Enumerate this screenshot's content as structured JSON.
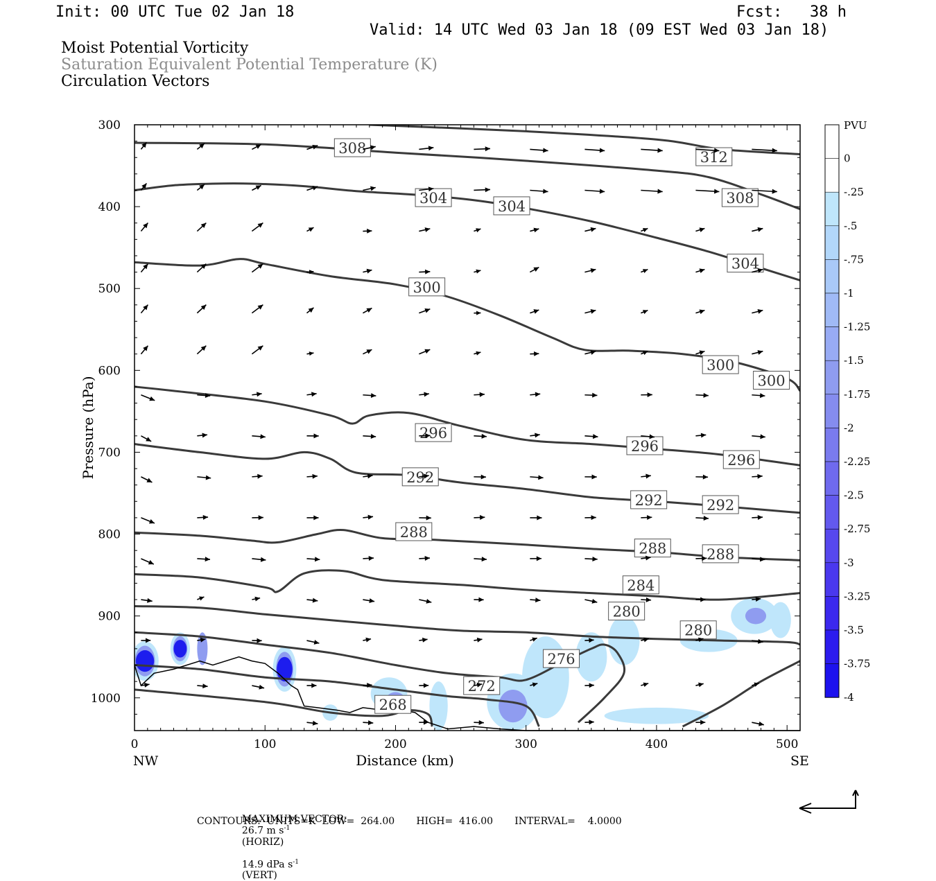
{
  "header": {
    "init": "Init: 00 UTC Tue 02 Jan 18",
    "fcst": "Fcst:   38 h",
    "valid": "Valid: 14 UTC Wed 03 Jan 18 (09 EST Wed 03 Jan 18)"
  },
  "fields": {
    "line1": "Moist Potential Vorticity",
    "line2": "Saturation Equivalent Potential Temperature (K)",
    "line3": "Circulation Vectors"
  },
  "footer": {
    "max_vector_label": "MAXIMUM VECTOR:",
    "horiz": "26.7 m s",
    "horiz_sup": "-1",
    "horiz_tag": "(HORIZ)",
    "vert": "14.9 dPa s",
    "vert_sup": "-1",
    "vert_tag": "(VERT)",
    "contours": "CONTOURS:  UNITS=K  LOW=  264.00       HIGH=  416.00       INTERVAL=    4.0000"
  },
  "colors": {
    "contour": "#3a3a3a",
    "pv_light": "#bfe6fb",
    "pv_mid": "#8f9cf0",
    "pv_dark": "#1d1dee"
  },
  "chart_data": {
    "type": "cross-section",
    "xlabel": "Distance (km)",
    "ylabel": "Pressure (hPa)",
    "xlim": [
      0,
      510
    ],
    "ylim": [
      1040,
      300
    ],
    "x_ticks": [
      0,
      100,
      200,
      300,
      400,
      500
    ],
    "y_ticks": [
      300,
      400,
      500,
      600,
      700,
      800,
      900,
      1000
    ],
    "x_end_labels": {
      "left": "NW",
      "right": "SE"
    },
    "colorbar": {
      "unit": "PVU",
      "labels": [
        "0",
        "-.25",
        "-.5",
        "-.75",
        "-1",
        "-1.25",
        "-1.5",
        "-1.75",
        "-2",
        "-2.25",
        "-2.5",
        "-2.75",
        "-3",
        "-3.25",
        "-3.5",
        "-3.75",
        "-4"
      ],
      "colors": [
        "#ffffff",
        "#ffffff",
        "#bfe6fb",
        "#b2d7fa",
        "#a9c9f8",
        "#a0baf6",
        "#98abf4",
        "#8f9cf0",
        "#858cef",
        "#7a7bee",
        "#6f6aee",
        "#6359ee",
        "#5748ee",
        "#4a38ee",
        "#3b28ee",
        "#2c1bee",
        "#1d12ee"
      ]
    },
    "contours": [
      {
        "label": "312",
        "points": [
          [
            180,
            300
          ],
          [
            300,
            308
          ],
          [
            400,
            318
          ],
          [
            450,
            330
          ],
          [
            510,
            336
          ]
        ],
        "label_at": [
          [
            444,
            339
          ]
        ]
      },
      {
        "label": "308",
        "points": [
          [
            0,
            322
          ],
          [
            100,
            324
          ],
          [
            200,
            334
          ],
          [
            300,
            344
          ],
          [
            400,
            356
          ],
          [
            440,
            364
          ],
          [
            480,
            385
          ],
          [
            510,
            403
          ]
        ],
        "label_at": [
          [
            167,
            328
          ],
          [
            464,
            389
          ]
        ]
      },
      {
        "label": "304",
        "points": [
          [
            0,
            380
          ],
          [
            30,
            374
          ],
          [
            60,
            372
          ],
          [
            90,
            372
          ],
          [
            130,
            375
          ],
          [
            170,
            381
          ],
          [
            220,
            386
          ],
          [
            260,
            392
          ],
          [
            300,
            402
          ],
          [
            350,
            418
          ],
          [
            400,
            438
          ],
          [
            440,
            455
          ],
          [
            480,
            475
          ],
          [
            510,
            490
          ]
        ],
        "label_at": [
          [
            229,
            389
          ],
          [
            289,
            399
          ],
          [
            468,
            469
          ]
        ]
      },
      {
        "label": "300",
        "points": [
          [
            0,
            468
          ],
          [
            50,
            472
          ],
          [
            80,
            464
          ],
          [
            100,
            470
          ],
          [
            150,
            485
          ],
          [
            200,
            495
          ],
          [
            240,
            510
          ],
          [
            280,
            533
          ],
          [
            320,
            560
          ],
          [
            345,
            575
          ],
          [
            380,
            576
          ],
          [
            420,
            580
          ],
          [
            460,
            590
          ],
          [
            500,
            610
          ],
          [
            510,
            625
          ]
        ],
        "label_at": [
          [
            224,
            498
          ],
          [
            449,
            593
          ],
          [
            488,
            612
          ]
        ]
      },
      {
        "label": "296",
        "points": [
          [
            0,
            620
          ],
          [
            30,
            625
          ],
          [
            100,
            638
          ],
          [
            150,
            655
          ],
          [
            167,
            665
          ],
          [
            180,
            655
          ],
          [
            210,
            652
          ],
          [
            250,
            668
          ],
          [
            300,
            685
          ],
          [
            350,
            690
          ],
          [
            400,
            696
          ],
          [
            450,
            703
          ],
          [
            510,
            716
          ]
        ],
        "label_at": [
          [
            229,
            676
          ],
          [
            391,
            692
          ],
          [
            465,
            709
          ]
        ]
      },
      {
        "label": "292",
        "points": [
          [
            0,
            690
          ],
          [
            50,
            700
          ],
          [
            100,
            708
          ],
          [
            130,
            700
          ],
          [
            150,
            708
          ],
          [
            170,
            725
          ],
          [
            210,
            728
          ],
          [
            250,
            737
          ],
          [
            300,
            745
          ],
          [
            350,
            755
          ],
          [
            400,
            760
          ],
          [
            450,
            766
          ],
          [
            510,
            774
          ]
        ],
        "label_at": [
          [
            219,
            730
          ],
          [
            394,
            758
          ],
          [
            449,
            764
          ]
        ]
      },
      {
        "label": "288",
        "points": [
          [
            0,
            798
          ],
          [
            50,
            802
          ],
          [
            90,
            808
          ],
          [
            110,
            810
          ],
          [
            140,
            800
          ],
          [
            160,
            795
          ],
          [
            190,
            805
          ],
          [
            230,
            807
          ],
          [
            300,
            813
          ],
          [
            350,
            818
          ],
          [
            400,
            822
          ],
          [
            450,
            828
          ],
          [
            510,
            832
          ]
        ],
        "label_at": [
          [
            214,
            797
          ],
          [
            397,
            817
          ],
          [
            449,
            824
          ]
        ]
      },
      {
        "label": "284",
        "points": [
          [
            0,
            849
          ],
          [
            50,
            853
          ],
          [
            100,
            865
          ],
          [
            110,
            870
          ],
          [
            130,
            848
          ],
          [
            160,
            845
          ],
          [
            190,
            856
          ],
          [
            250,
            862
          ],
          [
            300,
            868
          ],
          [
            350,
            872
          ],
          [
            400,
            876
          ],
          [
            450,
            880
          ],
          [
            510,
            872
          ]
        ],
        "label_at": [
          [
            388,
            862
          ]
        ]
      },
      {
        "label": "280",
        "points": [
          [
            0,
            888
          ],
          [
            50,
            890
          ],
          [
            100,
            898
          ],
          [
            150,
            905
          ],
          [
            200,
            912
          ],
          [
            250,
            918
          ],
          [
            300,
            920
          ],
          [
            350,
            925
          ],
          [
            400,
            928
          ],
          [
            450,
            930
          ],
          [
            500,
            932
          ],
          [
            510,
            935
          ]
        ],
        "label_at": [
          [
            377,
            894
          ],
          [
            432,
            917
          ]
        ]
      },
      {
        "label": "276",
        "points": [
          [
            0,
            920
          ],
          [
            50,
            925
          ],
          [
            100,
            935
          ],
          [
            150,
            945
          ],
          [
            200,
            960
          ],
          [
            240,
            970
          ],
          [
            280,
            975
          ],
          [
            300,
            978
          ],
          [
            330,
            955
          ],
          [
            350,
            940
          ],
          [
            360,
            935
          ],
          [
            370,
            945
          ],
          [
            375,
            970
          ],
          [
            360,
            1000
          ],
          [
            340,
            1030
          ]
        ],
        "label_at": [
          [
            327,
            952
          ]
        ]
      },
      {
        "label": "272",
        "points": [
          [
            0,
            960
          ],
          [
            50,
            965
          ],
          [
            100,
            975
          ],
          [
            150,
            980
          ],
          [
            200,
            990
          ],
          [
            240,
            998
          ],
          [
            270,
            1002
          ],
          [
            300,
            1010
          ],
          [
            310,
            1035
          ]
        ],
        "label_at": [
          [
            266,
            985
          ]
        ]
      },
      {
        "label": "268",
        "points": [
          [
            0,
            990
          ],
          [
            100,
            1005
          ],
          [
            150,
            1018
          ],
          [
            190,
            1022
          ],
          [
            210,
            1015
          ],
          [
            225,
            1020
          ],
          [
            228,
            1035
          ]
        ],
        "label_at": [
          [
            198,
            1008
          ]
        ]
      },
      {
        "label": "",
        "points": [
          [
            420,
            1035
          ],
          [
            450,
            1010
          ],
          [
            480,
            980
          ],
          [
            510,
            955
          ]
        ],
        "label_at": []
      }
    ],
    "terrain": {
      "label": "",
      "points": [
        [
          0,
          960
        ],
        [
          5,
          985
        ],
        [
          15,
          970
        ],
        [
          30,
          965
        ],
        [
          50,
          955
        ],
        [
          60,
          960
        ],
        [
          80,
          950
        ],
        [
          90,
          955
        ],
        [
          100,
          958
        ],
        [
          110,
          970
        ],
        [
          120,
          985
        ],
        [
          125,
          990
        ],
        [
          130,
          1010
        ],
        [
          140,
          1012
        ],
        [
          155,
          1015
        ],
        [
          165,
          1018
        ],
        [
          175,
          1012
        ],
        [
          190,
          1015
        ],
        [
          205,
          1015
        ],
        [
          215,
          1018
        ],
        [
          225,
          1030
        ],
        [
          240,
          1038
        ],
        [
          260,
          1035
        ],
        [
          280,
          1038
        ],
        [
          300,
          1040
        ],
        [
          400,
          1040
        ],
        [
          510,
          1040
        ]
      ]
    },
    "pv_patches": [
      {
        "x": 8,
        "p": 955,
        "rx": 7,
        "ry": 22,
        "level": "dark"
      },
      {
        "x": 35,
        "p": 940,
        "rx": 5,
        "ry": 18,
        "level": "dark"
      },
      {
        "x": 52,
        "p": 940,
        "rx": 4,
        "ry": 20,
        "level": "mid"
      },
      {
        "x": 115,
        "p": 965,
        "rx": 6,
        "ry": 25,
        "level": "dark"
      },
      {
        "x": 195,
        "p": 995,
        "rx": 14,
        "ry": 20,
        "level": "light"
      },
      {
        "x": 200,
        "p": 1005,
        "rx": 8,
        "ry": 12,
        "level": "mid"
      },
      {
        "x": 233,
        "p": 1010,
        "rx": 7,
        "ry": 30,
        "level": "light"
      },
      {
        "x": 290,
        "p": 1005,
        "rx": 20,
        "ry": 35,
        "level": "light"
      },
      {
        "x": 290,
        "p": 1010,
        "rx": 11,
        "ry": 20,
        "level": "mid"
      },
      {
        "x": 315,
        "p": 975,
        "rx": 18,
        "ry": 50,
        "level": "light"
      },
      {
        "x": 350,
        "p": 950,
        "rx": 12,
        "ry": 30,
        "level": "light"
      },
      {
        "x": 375,
        "p": 930,
        "rx": 12,
        "ry": 30,
        "level": "light"
      },
      {
        "x": 400,
        "p": 1022,
        "rx": 40,
        "ry": 10,
        "level": "light"
      },
      {
        "x": 440,
        "p": 930,
        "rx": 22,
        "ry": 14,
        "level": "light"
      },
      {
        "x": 475,
        "p": 900,
        "rx": 18,
        "ry": 22,
        "level": "light"
      },
      {
        "x": 476,
        "p": 900,
        "rx": 8,
        "ry": 10,
        "level": "mid"
      },
      {
        "x": 495,
        "p": 905,
        "rx": 8,
        "ry": 22,
        "level": "light"
      },
      {
        "x": 150,
        "p": 1018,
        "rx": 6,
        "ry": 10,
        "level": "light"
      }
    ]
  }
}
